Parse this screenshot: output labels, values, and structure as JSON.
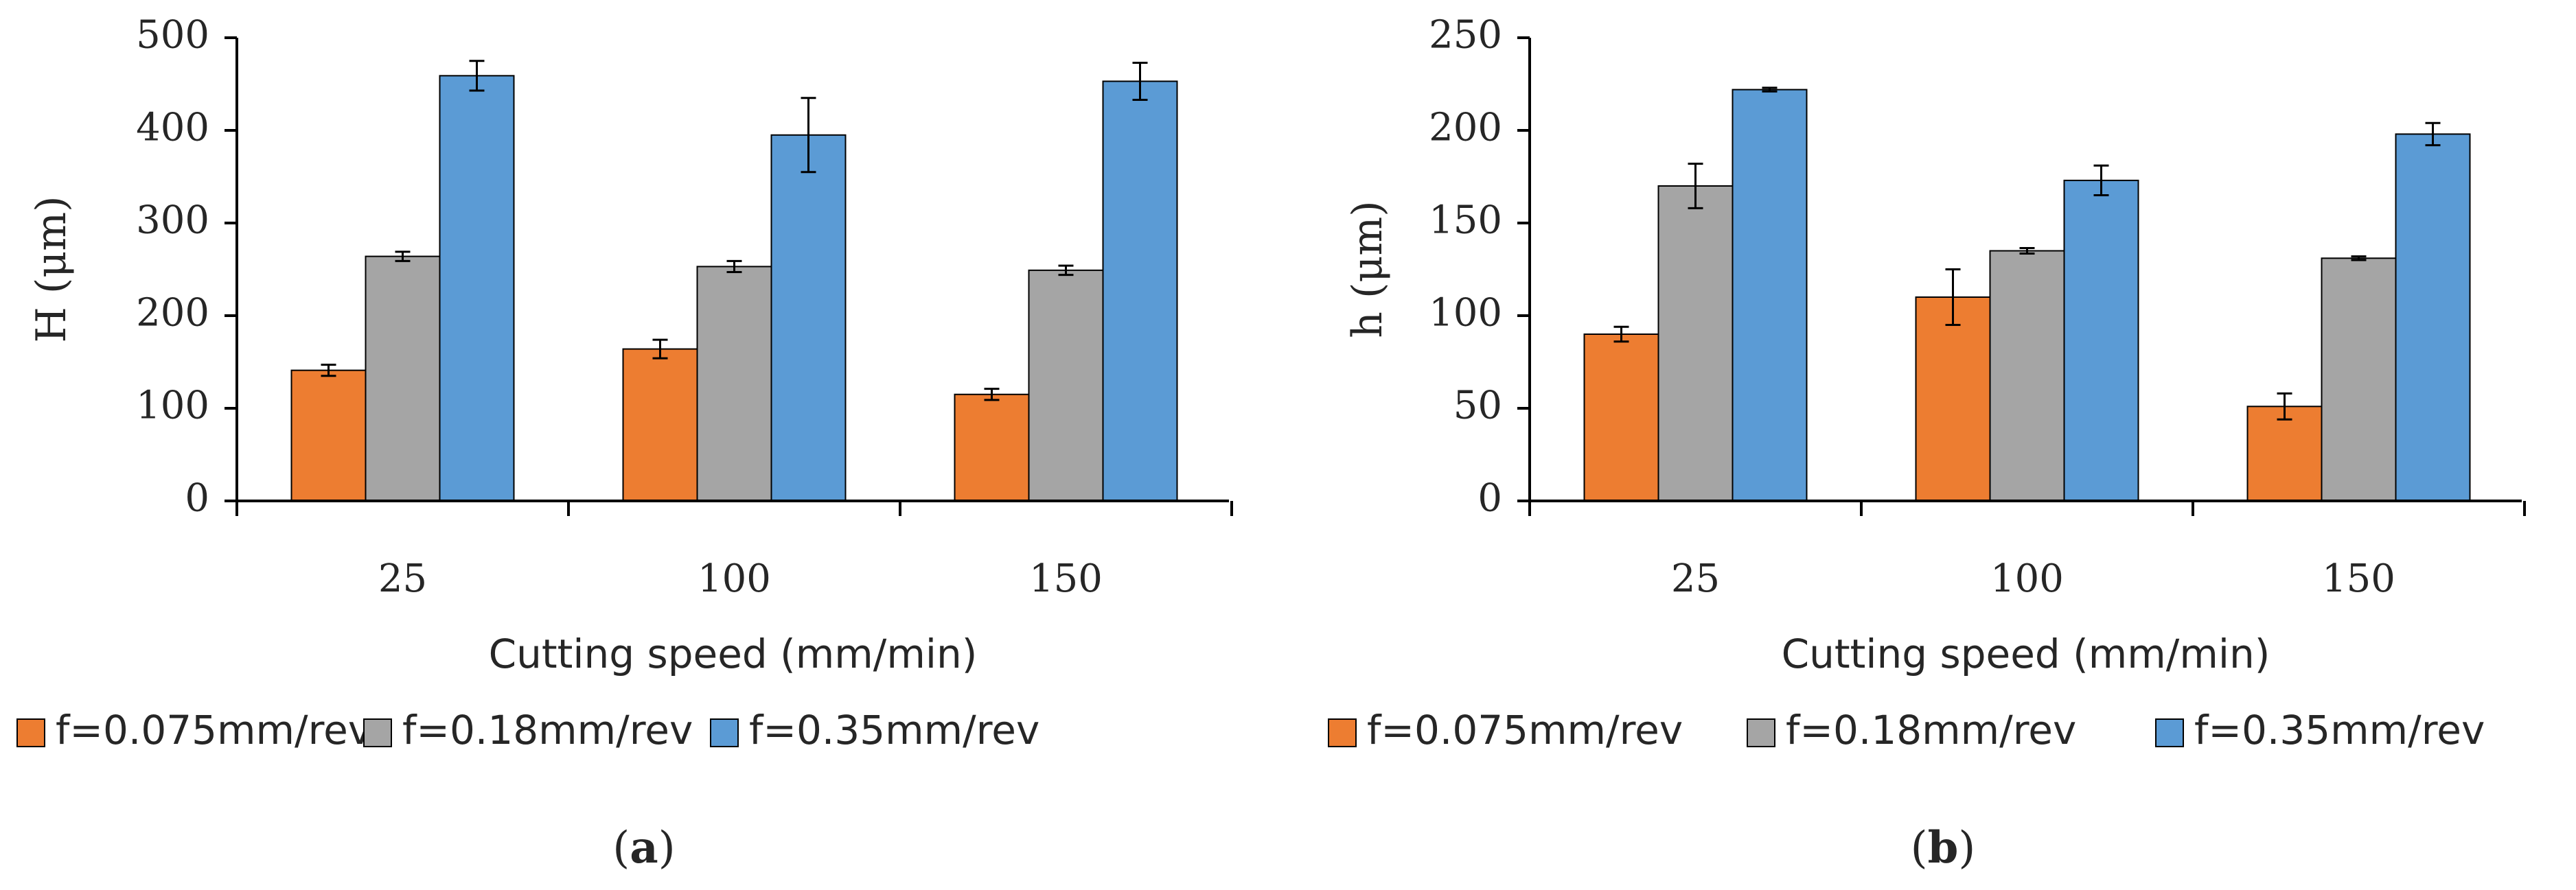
{
  "colors": {
    "orange": "#ED7D31",
    "gray": "#A5A5A5",
    "blue": "#5B9BD5",
    "axis": "#000000",
    "text": "#262626"
  },
  "chart_data": [
    {
      "type": "bar",
      "panel_label_open": "(",
      "panel_label": "a",
      "panel_label_close": ")",
      "categories": [
        "25",
        "100",
        "150"
      ],
      "xlabel": "Cutting speed (mm/min)",
      "ylabel": "H (μm)",
      "ylim": [
        0,
        500
      ],
      "yticks": [
        0,
        100,
        200,
        300,
        400,
        500
      ],
      "grid": false,
      "legend_position": "bottom",
      "series": [
        {
          "name": "f=0.075mm/rev",
          "color": "#ED7D31",
          "values": [
            141,
            164,
            115
          ],
          "errors": [
            6,
            10,
            6
          ]
        },
        {
          "name": "f=0.18mm/rev",
          "color": "#A5A5A5",
          "values": [
            264,
            253,
            249
          ],
          "errors": [
            5,
            6,
            5
          ]
        },
        {
          "name": "f=0.35mm/rev",
          "color": "#5B9BD5",
          "values": [
            459,
            395,
            453
          ],
          "errors": [
            16,
            40,
            20
          ]
        }
      ]
    },
    {
      "type": "bar",
      "panel_label_open": "(",
      "panel_label": "b",
      "panel_label_close": ")",
      "categories": [
        "25",
        "100",
        "150"
      ],
      "xlabel": "Cutting speed (mm/min)",
      "ylabel": "h (μm)",
      "ylim": [
        0,
        250
      ],
      "yticks": [
        0,
        50,
        100,
        150,
        200,
        250
      ],
      "grid": false,
      "legend_position": "bottom",
      "series": [
        {
          "name": "f=0.075mm/rev",
          "color": "#ED7D31",
          "values": [
            90,
            110,
            51
          ],
          "errors": [
            4,
            15,
            7
          ]
        },
        {
          "name": "f=0.18mm/rev",
          "color": "#A5A5A5",
          "values": [
            170,
            135,
            131
          ],
          "errors": [
            12,
            1.5,
            1
          ]
        },
        {
          "name": "f=0.35mm/rev",
          "color": "#5B9BD5",
          "values": [
            222,
            173,
            198
          ],
          "errors": [
            1,
            8,
            6
          ]
        }
      ]
    }
  ]
}
